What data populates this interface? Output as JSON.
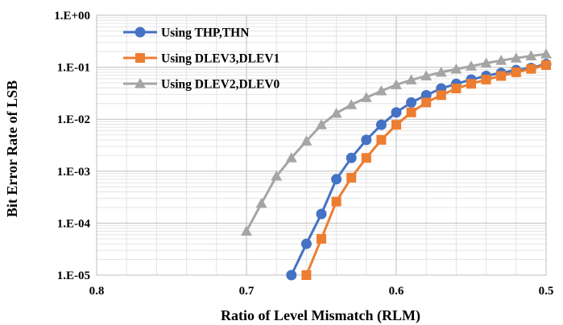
{
  "chart_data": {
    "type": "line",
    "xlabel": "Ratio of Level Mismatch (RLM)",
    "ylabel": "Bit Error Rate of LSB",
    "x_reversed": true,
    "xlim": [
      0.8,
      0.5
    ],
    "ylim": [
      1e-05,
      1
    ],
    "y_scale": "log",
    "grid": true,
    "legend_position": "top-left",
    "x_ticks": [
      {
        "value": 0.8,
        "label": "0.8"
      },
      {
        "value": 0.7,
        "label": "0.7"
      },
      {
        "value": 0.6,
        "label": "0.6"
      },
      {
        "value": 0.5,
        "label": "0.5"
      }
    ],
    "y_ticks": [
      {
        "value": 1,
        "label": "1.E+00"
      },
      {
        "value": 0.1,
        "label": "1.E-01"
      },
      {
        "value": 0.01,
        "label": "1.E-02"
      },
      {
        "value": 0.001,
        "label": "1.E-03"
      },
      {
        "value": 0.0001,
        "label": "1.E-04"
      },
      {
        "value": 1e-05,
        "label": "1.E-05"
      }
    ],
    "series": [
      {
        "name": "Using THP,THN",
        "color": "#4472C4",
        "marker": "circle",
        "points": [
          [
            0.67,
            1e-05
          ],
          [
            0.66,
            4e-05
          ],
          [
            0.65,
            0.00015
          ],
          [
            0.64,
            0.0007
          ],
          [
            0.63,
            0.0018
          ],
          [
            0.62,
            0.004
          ],
          [
            0.61,
            0.0078
          ],
          [
            0.6,
            0.0135
          ],
          [
            0.59,
            0.021
          ],
          [
            0.58,
            0.029
          ],
          [
            0.57,
            0.039
          ],
          [
            0.56,
            0.048
          ],
          [
            0.55,
            0.058
          ],
          [
            0.54,
            0.068
          ],
          [
            0.53,
            0.078
          ],
          [
            0.52,
            0.088
          ],
          [
            0.51,
            0.097
          ],
          [
            0.5,
            0.115
          ]
        ]
      },
      {
        "name": "Using DLEV3,DLEV1",
        "color": "#ED7D31",
        "marker": "square",
        "points": [
          [
            0.66,
            1e-05
          ],
          [
            0.65,
            5e-05
          ],
          [
            0.64,
            0.00026
          ],
          [
            0.63,
            0.00075
          ],
          [
            0.62,
            0.0018
          ],
          [
            0.61,
            0.004
          ],
          [
            0.6,
            0.0078
          ],
          [
            0.59,
            0.0135
          ],
          [
            0.58,
            0.021
          ],
          [
            0.57,
            0.029
          ],
          [
            0.56,
            0.039
          ],
          [
            0.55,
            0.048
          ],
          [
            0.54,
            0.058
          ],
          [
            0.53,
            0.068
          ],
          [
            0.52,
            0.08
          ],
          [
            0.51,
            0.093
          ],
          [
            0.5,
            0.11
          ]
        ]
      },
      {
        "name": "Using DLEV2,DLEV0",
        "color": "#A5A5A5",
        "marker": "triangle",
        "points": [
          [
            0.7,
            7e-05
          ],
          [
            0.69,
            0.00024
          ],
          [
            0.68,
            0.0008
          ],
          [
            0.67,
            0.0018
          ],
          [
            0.66,
            0.0038
          ],
          [
            0.65,
            0.0078
          ],
          [
            0.64,
            0.013
          ],
          [
            0.63,
            0.019
          ],
          [
            0.62,
            0.026
          ],
          [
            0.61,
            0.035
          ],
          [
            0.6,
            0.046
          ],
          [
            0.59,
            0.057
          ],
          [
            0.58,
            0.068
          ],
          [
            0.57,
            0.08
          ],
          [
            0.56,
            0.092
          ],
          [
            0.55,
            0.105
          ],
          [
            0.54,
            0.12
          ],
          [
            0.53,
            0.135
          ],
          [
            0.52,
            0.15
          ],
          [
            0.51,
            0.165
          ],
          [
            0.5,
            0.18
          ]
        ]
      }
    ]
  }
}
